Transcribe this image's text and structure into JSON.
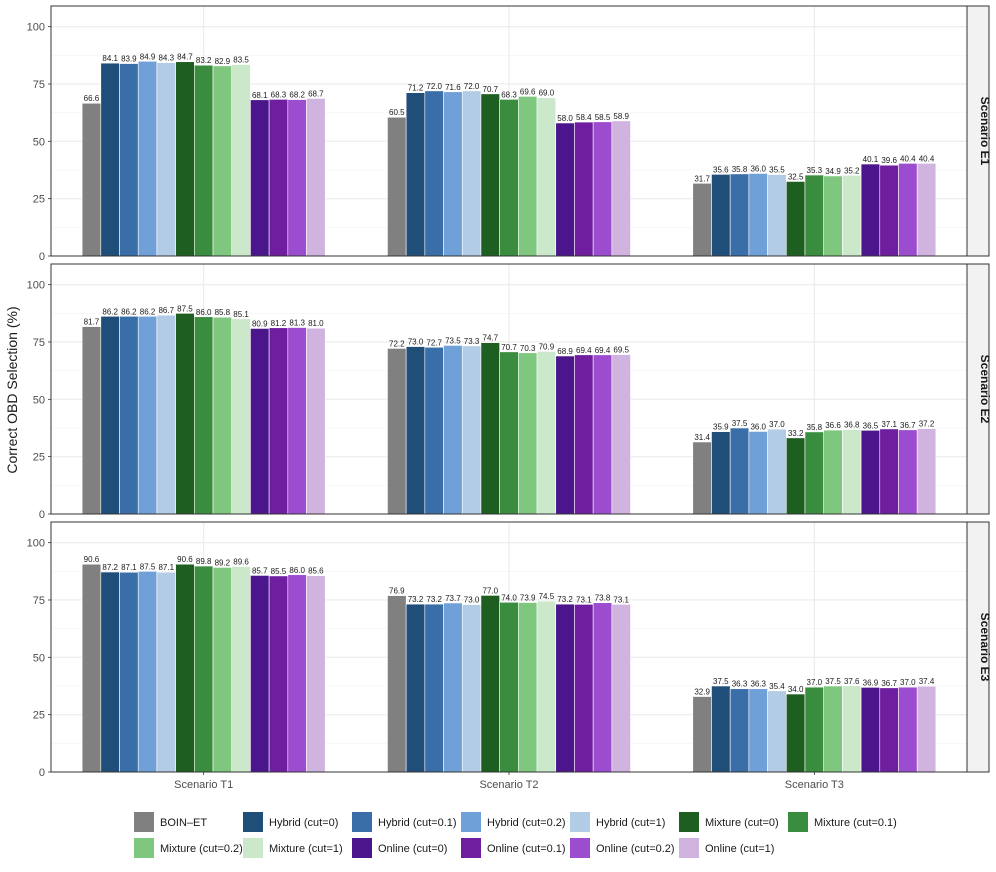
{
  "chart_data": {
    "type": "bar",
    "ylabel": "Correct OBD Selection (%)",
    "xlabel": "",
    "ylim": [
      0,
      109
    ],
    "yticks": [
      0,
      25,
      50,
      75,
      100
    ],
    "yticks_labels": [
      "0",
      "25",
      "50",
      "75",
      "100"
    ],
    "categories": [
      "Scenario T1",
      "Scenario T2",
      "Scenario T3"
    ],
    "facets": [
      "Scenario E1",
      "Scenario E2",
      "Scenario E3"
    ],
    "series": [
      {
        "name": "BOIN–ET",
        "color": "#808080",
        "values": [
          [
            66.6,
            60.5,
            31.7
          ],
          [
            81.7,
            72.2,
            31.4
          ],
          [
            90.6,
            76.9,
            32.9
          ]
        ],
        "labels": [
          [
            "66.6",
            "60.5",
            "31.7"
          ],
          [
            "81.7",
            "72.2",
            "31.4"
          ],
          [
            "90.6",
            "76.9",
            "32.9"
          ]
        ]
      },
      {
        "name": "Hybrid (cut=0)",
        "color": "#1f4e79",
        "values": [
          [
            84.1,
            71.2,
            35.6
          ],
          [
            86.2,
            73.0,
            35.9
          ],
          [
            87.2,
            73.2,
            37.5
          ]
        ],
        "labels": [
          [
            "84.1",
            "71.2",
            "35.6"
          ],
          [
            "86.2",
            "73.0",
            "35.9"
          ],
          [
            "87.2",
            "73.2",
            "37.5"
          ]
        ]
      },
      {
        "name": "Hybrid (cut=0.1)",
        "color": "#3a6ea8",
        "values": [
          [
            83.9,
            72.0,
            35.8
          ],
          [
            86.2,
            72.7,
            37.5
          ],
          [
            87.1,
            73.2,
            36.3
          ]
        ],
        "labels": [
          [
            "83.9",
            "72.0",
            "35.8"
          ],
          [
            "86.2",
            "72.7",
            "37.5"
          ],
          [
            "87.1",
            "73.2",
            "36.3"
          ]
        ]
      },
      {
        "name": "Hybrid (cut=0.2)",
        "color": "#6fa0d8",
        "values": [
          [
            84.9,
            71.6,
            36.0
          ],
          [
            86.2,
            73.5,
            36.0
          ],
          [
            87.5,
            73.7,
            36.3
          ]
        ],
        "labels": [
          [
            "84.9",
            "71.6",
            "36.0"
          ],
          [
            "86.2",
            "73.5",
            "36.0"
          ],
          [
            "87.5",
            "73.7",
            "36.3"
          ]
        ]
      },
      {
        "name": "Hybrid (cut=1)",
        "color": "#b3cce6",
        "values": [
          [
            84.3,
            72.0,
            35.5
          ],
          [
            86.7,
            73.3,
            37.0
          ],
          [
            87.1,
            73.0,
            35.4
          ]
        ],
        "labels": [
          [
            "84.3",
            "72.0",
            "35.5"
          ],
          [
            "86.7",
            "73.3",
            "37.0"
          ],
          [
            "87.1",
            "73.0",
            "35.4"
          ]
        ]
      },
      {
        "name": "Mixture (cut=0)",
        "color": "#1e5e20",
        "values": [
          [
            84.7,
            70.7,
            32.5
          ],
          [
            87.5,
            74.7,
            33.2
          ],
          [
            90.6,
            77.0,
            34.0
          ]
        ],
        "labels": [
          [
            "84.7",
            "70.7",
            "32.5"
          ],
          [
            "87.5",
            "74.7",
            "33.2"
          ],
          [
            "90.6",
            "77.0",
            "34.0"
          ]
        ]
      },
      {
        "name": "Mixture (cut=0.1)",
        "color": "#3a8c3e",
        "values": [
          [
            83.2,
            68.3,
            35.3
          ],
          [
            86.0,
            70.7,
            35.8
          ],
          [
            89.8,
            74.0,
            37.0
          ]
        ],
        "labels": [
          [
            "83.2",
            "68.3",
            "35.3"
          ],
          [
            "86.0",
            "70.7",
            "35.8"
          ],
          [
            "89.8",
            "74.0",
            "37.0"
          ]
        ]
      },
      {
        "name": "Mixture (cut=0.2)",
        "color": "#7fc77f",
        "values": [
          [
            82.9,
            69.6,
            34.9
          ],
          [
            85.8,
            70.3,
            36.6
          ],
          [
            89.2,
            73.9,
            37.5
          ]
        ],
        "labels": [
          [
            "82.9",
            "69.6",
            "34.9"
          ],
          [
            "85.8",
            "70.3",
            "36.6"
          ],
          [
            "89.2",
            "73.9",
            "37.5"
          ]
        ]
      },
      {
        "name": "Mixture (cut=1)",
        "color": "#cbe8cb",
        "values": [
          [
            83.5,
            69.0,
            35.2
          ],
          [
            85.1,
            70.9,
            36.8
          ],
          [
            89.6,
            74.5,
            37.6
          ]
        ],
        "labels": [
          [
            "83.5",
            "69.0",
            "35.2"
          ],
          [
            "85.1",
            "70.9",
            "36.8"
          ],
          [
            "89.6",
            "74.5",
            "37.6"
          ]
        ]
      },
      {
        "name": "Online (cut=0)",
        "color": "#4b168c",
        "values": [
          [
            68.1,
            58.0,
            40.1
          ],
          [
            80.9,
            68.9,
            36.5
          ],
          [
            85.7,
            73.2,
            36.9
          ]
        ],
        "labels": [
          [
            "68.1",
            "58.0",
            "40.1"
          ],
          [
            "80.9",
            "68.9",
            "36.5"
          ],
          [
            "85.7",
            "73.2",
            "36.9"
          ]
        ]
      },
      {
        "name": "Online (cut=0.1)",
        "color": "#6e1e9e",
        "values": [
          [
            68.3,
            58.4,
            39.6
          ],
          [
            81.2,
            69.4,
            37.1
          ],
          [
            85.5,
            73.1,
            36.7
          ]
        ],
        "labels": [
          [
            "68.3",
            "58.4",
            "39.6"
          ],
          [
            "81.2",
            "69.4",
            "37.1"
          ],
          [
            "85.5",
            "73.1",
            "36.7"
          ]
        ]
      },
      {
        "name": "Online (cut=0.2)",
        "color": "#9b4ccf",
        "values": [
          [
            68.2,
            58.5,
            40.4
          ],
          [
            81.3,
            69.4,
            36.7
          ],
          [
            86.0,
            73.8,
            37.0
          ]
        ],
        "labels": [
          [
            "68.2",
            "58.5",
            "40.4"
          ],
          [
            "81.3",
            "69.4",
            "36.7"
          ],
          [
            "86.0",
            "73.8",
            "37.0"
          ]
        ]
      },
      {
        "name": "Online (cut=1)",
        "color": "#d1b3e0",
        "values": [
          [
            68.7,
            58.9,
            40.4
          ],
          [
            81.0,
            69.5,
            37.2
          ],
          [
            85.6,
            73.1,
            37.4
          ]
        ],
        "labels": [
          [
            "68.7",
            "58.9",
            "40.4"
          ],
          [
            "81.0",
            "69.5",
            "37.2"
          ],
          [
            "85.6",
            "73.1",
            "37.4"
          ]
        ]
      }
    ],
    "legend": "bottom",
    "grid": true
  }
}
